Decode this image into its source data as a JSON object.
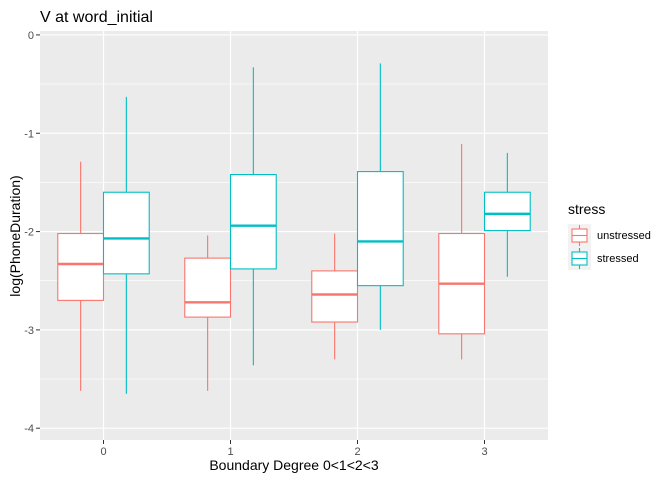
{
  "chart_data": {
    "type": "boxplot",
    "title": "V at word_initial",
    "xlabel": "Boundary Degree 0<1<2<3",
    "ylabel": "log(PhoneDuration)",
    "categories": [
      "0",
      "1",
      "2",
      "3"
    ],
    "ylim": [
      -4.12,
      0.04
    ],
    "yticks": [
      0,
      -1,
      -2,
      -3,
      -4
    ],
    "grid": true,
    "legend": {
      "title": "stress",
      "placement": "right"
    },
    "series": [
      {
        "name": "unstressed",
        "color": "#F8766D",
        "boxes": [
          {
            "category": "0",
            "min": -3.62,
            "q1": -2.7,
            "median": -2.33,
            "q3": -2.02,
            "max": -1.29
          },
          {
            "category": "1",
            "min": -3.62,
            "q1": -2.87,
            "median": -2.72,
            "q3": -2.27,
            "max": -2.04
          },
          {
            "category": "2",
            "min": -3.3,
            "q1": -2.92,
            "median": -2.64,
            "q3": -2.4,
            "max": -2.02
          },
          {
            "category": "3",
            "min": -3.3,
            "q1": -3.04,
            "median": -2.53,
            "q3": -2.02,
            "max": -1.11
          }
        ]
      },
      {
        "name": "stressed",
        "color": "#00BFC4",
        "boxes": [
          {
            "category": "0",
            "min": -3.65,
            "q1": -2.43,
            "median": -2.07,
            "q3": -1.6,
            "max": -0.63
          },
          {
            "category": "1",
            "min": -3.36,
            "q1": -2.38,
            "median": -1.94,
            "q3": -1.42,
            "max": -0.33
          },
          {
            "category": "2",
            "min": -3.0,
            "q1": -2.55,
            "median": -2.1,
            "q3": -1.39,
            "max": -0.29
          },
          {
            "category": "3",
            "min": -2.46,
            "q1": -1.99,
            "median": -1.82,
            "q3": -1.6,
            "max": -1.2
          }
        ]
      }
    ]
  }
}
